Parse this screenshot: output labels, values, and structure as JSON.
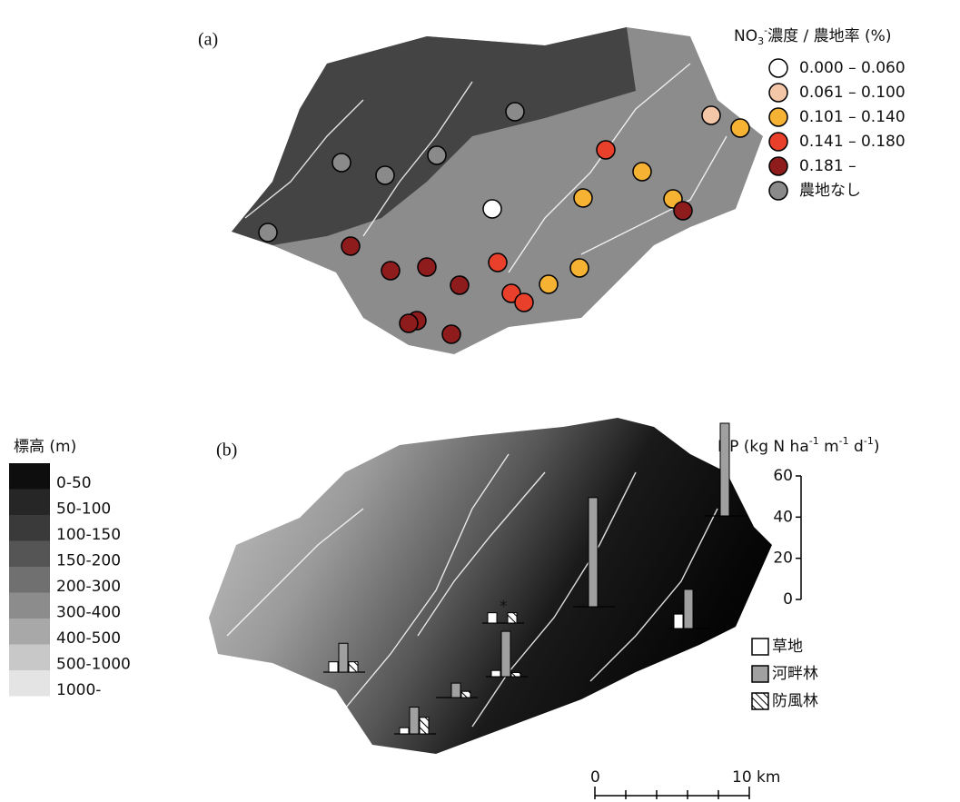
{
  "panel_a": {
    "label": "(a)",
    "legend_title": {
      "main": "NO",
      "sub": "3",
      "sup": "-",
      "rest": "濃度 / 農地率 (%)"
    },
    "legend": [
      {
        "label": "0.000 – 0.060",
        "color": "#ffffff"
      },
      {
        "label": "0.061 – 0.100",
        "color": "#f4c6a8"
      },
      {
        "label": "0.101 – 0.140",
        "color": "#f6b232"
      },
      {
        "label": "0.141 – 0.180",
        "color": "#e8402a"
      },
      {
        "label": "0.181 –",
        "color": "#8e1c1c"
      },
      {
        "label": "農地なし",
        "color": "#8a8a8a"
      }
    ]
  },
  "panel_b": {
    "label": "(b)",
    "elevation_title": "標高 (m)",
    "elevation_legend": [
      {
        "label": "0-50",
        "color": "#0e0e0e"
      },
      {
        "label": "50-100",
        "color": "#262626"
      },
      {
        "label": "100-150",
        "color": "#3a3a3a"
      },
      {
        "label": "150-200",
        "color": "#555555"
      },
      {
        "label": "200-300",
        "color": "#707070"
      },
      {
        "label": "300-400",
        "color": "#8c8c8c"
      },
      {
        "label": "400-500",
        "color": "#a8a8a8"
      },
      {
        "label": "500-1000",
        "color": "#c8c8c8"
      },
      {
        "label": "1000-",
        "color": "#e4e4e4"
      }
    ],
    "chart_data": {
      "type": "bar",
      "title": {
        "a": "DP (kg N ha",
        "s1": "-1",
        "b": " m",
        "s2": "-1",
        "c": " d",
        "s3": "-1",
        "d": ")"
      },
      "categories": [
        null,
        null,
        null,
        null,
        null,
        null,
        null,
        null
      ],
      "series": [
        {
          "name": "草地",
          "color": "#ffffff",
          "values": [
            5,
            3,
            null,
            3,
            5,
            null,
            7,
            null
          ]
        },
        {
          "name": "河畔林",
          "color": "#a0a0a0",
          "values": [
            14,
            13,
            7,
            22,
            null,
            53,
            19,
            45
          ]
        },
        {
          "name": "防風林",
          "color": "hatch",
          "values": [
            5,
            8,
            3,
            2,
            5,
            null,
            null,
            null
          ]
        }
      ],
      "ylim": [
        0,
        60
      ],
      "yticks": [
        0,
        20,
        40,
        60
      ]
    },
    "note_mark": "*",
    "scale_bar": {
      "start": "0",
      "end": "10 km"
    }
  }
}
